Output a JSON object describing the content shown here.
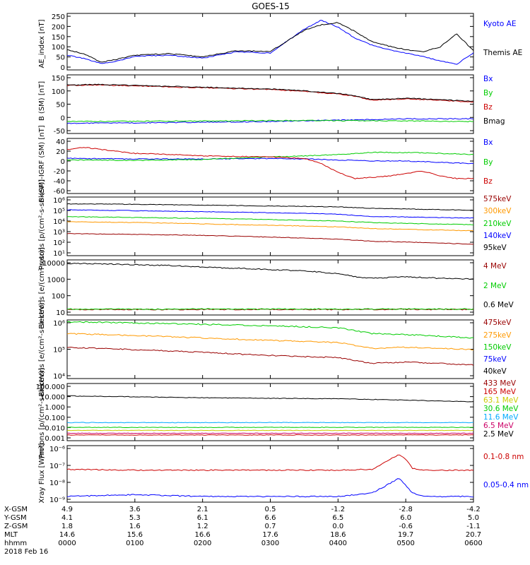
{
  "title": "GOES-15",
  "colors": {
    "black": "#000000",
    "blue": "#0000ff",
    "red": "#cc0000",
    "green": "#00cc00",
    "darkred": "#990000",
    "orange": "#ff9900",
    "cyan": "#00aaff",
    "magenta": "#cc0066",
    "yellow": "#cccc00"
  },
  "chart_data": [
    {
      "type": "line",
      "ylabel": "AE_index [nT]",
      "ylim": [
        0,
        250
      ],
      "yticks": [
        "250",
        "200",
        "150",
        "100",
        "50",
        "0"
      ],
      "series": [
        {
          "name": "Kyoto AE",
          "color": "blue",
          "x": [
            0,
            0.25,
            0.5,
            0.75,
            1,
            1.5,
            2,
            2.5,
            3,
            3.5,
            3.75,
            4,
            4.25,
            4.5,
            4.75,
            5,
            5.25,
            5.5,
            5.75,
            6
          ],
          "values": [
            65,
            50,
            28,
            40,
            60,
            65,
            52,
            80,
            75,
            180,
            220,
            190,
            140,
            110,
            90,
            75,
            60,
            40,
            25,
            75
          ]
        },
        {
          "name": "Themis AE",
          "color": "black",
          "x": [
            0,
            0.25,
            0.5,
            0.75,
            1,
            1.5,
            2,
            2.5,
            3,
            3.5,
            3.75,
            4,
            4.25,
            4.5,
            4.75,
            5,
            5.25,
            5.5,
            5.75,
            6
          ],
          "values": [
            90,
            70,
            35,
            48,
            65,
            72,
            58,
            85,
            82,
            175,
            200,
            210,
            170,
            125,
            105,
            90,
            80,
            100,
            160,
            85
          ]
        }
      ]
    },
    {
      "type": "line",
      "ylabel": "B (SM) [nT]",
      "ylim": [
        -60,
        160
      ],
      "yticks": [
        "150",
        "100",
        "50",
        "0",
        "-50"
      ],
      "series": [
        {
          "name": "Bx",
          "color": "blue",
          "x": [
            0,
            1,
            2,
            3,
            3.5,
            4,
            4.5,
            5,
            5.5,
            6
          ],
          "values": [
            -22,
            -20,
            -18,
            -15,
            -12,
            -10,
            -8,
            -5,
            -5,
            -5
          ]
        },
        {
          "name": "By",
          "color": "green",
          "x": [
            0,
            1,
            2,
            3,
            3.5,
            4,
            4.5,
            5,
            5.5,
            6
          ],
          "values": [
            -15,
            -14,
            -13,
            -12,
            -11,
            -12,
            -12,
            -13,
            -14,
            -15
          ]
        },
        {
          "name": "Bz",
          "color": "red",
          "x": [
            0,
            0.5,
            1,
            1.5,
            2,
            2.5,
            3,
            3.5,
            4,
            4.25,
            4.5,
            4.75,
            5,
            5.5,
            6
          ],
          "values": [
            120,
            122,
            118,
            115,
            112,
            108,
            105,
            98,
            88,
            80,
            65,
            68,
            70,
            65,
            58
          ]
        },
        {
          "name": "Bmag",
          "color": "black",
          "x": [
            0,
            0.5,
            1,
            1.5,
            2,
            2.5,
            3,
            3.5,
            4,
            4.25,
            4.5,
            4.75,
            5,
            5.5,
            6
          ],
          "values": [
            122,
            124,
            120,
            117,
            114,
            110,
            107,
            100,
            90,
            82,
            67,
            70,
            72,
            67,
            60
          ]
        }
      ]
    },
    {
      "type": "line",
      "ylabel": "B (SM)-IGRF (SM) [nT]",
      "ylim": [
        -70,
        40
      ],
      "yticks": [
        "40",
        "20",
        "0",
        "-20",
        "-40",
        "-60"
      ],
      "series": [
        {
          "name": "Bx",
          "color": "blue",
          "x": [
            0,
            1,
            2,
            3,
            3.5,
            4,
            4.5,
            5,
            5.5,
            6
          ],
          "values": [
            0,
            -1,
            -1,
            0,
            -1,
            -3,
            -5,
            -5,
            -8,
            -10
          ]
        },
        {
          "name": "By",
          "color": "green",
          "x": [
            0,
            1,
            2,
            3,
            3.5,
            4,
            4.5,
            5,
            5.5,
            6
          ],
          "values": [
            -3,
            -4,
            -2,
            3,
            5,
            8,
            12,
            12,
            10,
            8
          ]
        },
        {
          "name": "Bz",
          "color": "red",
          "x": [
            0,
            0.25,
            1,
            1.5,
            2,
            2.5,
            3,
            3.5,
            3.75,
            4,
            4.25,
            4.5,
            4.75,
            5,
            5.25,
            5.5,
            5.75,
            6
          ],
          "values": [
            18,
            22,
            10,
            8,
            5,
            4,
            3,
            0,
            -10,
            -28,
            -40,
            -38,
            -35,
            -30,
            -25,
            -35,
            -40,
            -40
          ]
        }
      ]
    },
    {
      "type": "line",
      "ylabel": "Protons [p/(cm²-s-sr-keV)]",
      "scale": "log",
      "ylim": [
        1,
        1000000
      ],
      "yticks": [
        "10⁶",
        "10⁵",
        "10⁴",
        "10³",
        "10²",
        "10¹"
      ],
      "series": [
        {
          "name": "575keV",
          "color": "darkred",
          "x": [
            0,
            1,
            2,
            3,
            4,
            4.5,
            5,
            6
          ],
          "values": [
            180,
            150,
            120,
            80,
            50,
            30,
            25,
            15
          ]
        },
        {
          "name": "300keV",
          "color": "orange",
          "x": [
            0,
            1,
            2,
            3,
            4,
            4.5,
            5,
            6
          ],
          "values": [
            3000,
            2500,
            1800,
            1300,
            900,
            600,
            500,
            350
          ]
        },
        {
          "name": "210keV",
          "color": "green",
          "x": [
            0,
            1,
            2,
            3,
            4,
            4.5,
            5,
            6
          ],
          "values": [
            10000,
            8000,
            6500,
            5000,
            3500,
            2500,
            2000,
            1500
          ]
        },
        {
          "name": "140keV",
          "color": "blue",
          "x": [
            0,
            1,
            2,
            3,
            4,
            4.5,
            5,
            6
          ],
          "values": [
            50000,
            40000,
            32000,
            25000,
            18000,
            10000,
            9000,
            7000
          ]
        },
        {
          "name": "95keV",
          "color": "black",
          "x": [
            0,
            1,
            2,
            3,
            4,
            4.5,
            5,
            6
          ],
          "values": [
            200000,
            180000,
            150000,
            120000,
            100000,
            70000,
            60000,
            45000
          ]
        }
      ]
    },
    {
      "type": "line",
      "ylabel": "Electrons [e/(cm²-s-sr)]",
      "scale": "log",
      "ylim": [
        10,
        10000
      ],
      "yticks": [
        "10000",
        "1000",
        "100",
        "10"
      ],
      "series": [
        {
          "name": "4 MeV",
          "color": "darkred",
          "x": [
            0,
            1,
            2,
            3,
            4,
            5,
            6
          ],
          "values": [
            20,
            20,
            20,
            20,
            20,
            20,
            20
          ]
        },
        {
          "name": "2 MeV",
          "color": "green",
          "x": [
            0,
            1,
            2,
            3,
            4,
            5,
            6
          ],
          "values": [
            21,
            21,
            21,
            21,
            21,
            21,
            21
          ]
        },
        {
          "name": "0.6 MeV",
          "color": "black",
          "x": [
            0,
            0.5,
            1,
            1.5,
            2,
            2.5,
            3,
            3.5,
            4,
            4.25,
            4.5,
            5,
            5.5,
            6
          ],
          "values": [
            6500,
            6000,
            5500,
            5000,
            4000,
            3500,
            3000,
            2500,
            1800,
            1200,
            1000,
            1200,
            1000,
            900
          ]
        }
      ]
    },
    {
      "type": "line",
      "ylabel": "Electrons [e/(cm²-s-sr-keV)]",
      "scale": "log",
      "ylim": [
        1000,
        1000000
      ],
      "yticks": [
        "10⁶",
        "10⁵",
        "10⁴"
      ],
      "series": [
        {
          "name": "475keV",
          "color": "darkred",
          "x": [
            0,
            1,
            2,
            3,
            4,
            4.5,
            5,
            6
          ],
          "values": [
            40000,
            30000,
            22000,
            15000,
            12000,
            6000,
            7000,
            5000
          ]
        },
        {
          "name": "275keV",
          "color": "orange",
          "x": [
            0,
            1,
            2,
            3,
            4,
            4.5,
            5,
            6
          ],
          "values": [
            200000,
            160000,
            120000,
            90000,
            70000,
            35000,
            40000,
            30000
          ]
        },
        {
          "name": "150keV",
          "color": "green",
          "x": [
            0,
            1,
            2,
            3,
            4,
            4.5,
            5,
            6
          ],
          "values": [
            800000,
            700000,
            600000,
            500000,
            400000,
            200000,
            180000,
            120000
          ]
        },
        {
          "name": "75keV",
          "color": "blue",
          "x": [],
          "values": []
        },
        {
          "name": "40keV",
          "color": "black",
          "x": [],
          "values": []
        }
      ]
    },
    {
      "type": "line",
      "ylabel": "Protons [p/(cm²-s-sr-keV)]",
      "scale": "log",
      "ylim": [
        0.001,
        1000
      ],
      "yticks": [
        "100.000",
        "10.000",
        "1.000",
        "0.100",
        "0.010",
        "0.001"
      ],
      "series": [
        {
          "name": "433 MeV",
          "color": "darkred",
          "x": [],
          "values": []
        },
        {
          "name": "165 MeV",
          "color": "red",
          "x": [
            0,
            6
          ],
          "values": [
            0.004,
            0.004
          ]
        },
        {
          "name": "63.1 MeV",
          "color": "yellow",
          "x": [
            0,
            6
          ],
          "values": [
            0.012,
            0.012
          ]
        },
        {
          "name": "30.6 MeV",
          "color": "green",
          "x": [
            0,
            6
          ],
          "values": [
            0.025,
            0.025
          ]
        },
        {
          "name": "11.6 MeV",
          "color": "cyan",
          "x": [
            0,
            6
          ],
          "values": [
            0.08,
            0.08
          ]
        },
        {
          "name": "6.5 MeV",
          "color": "magenta",
          "x": [
            0,
            6
          ],
          "values": [
            0.006,
            0.006
          ]
        },
        {
          "name": "2.5 MeV",
          "color": "black",
          "x": [
            0,
            1,
            2,
            3,
            4,
            5,
            6
          ],
          "values": [
            50,
            40,
            32,
            28,
            25,
            18,
            12
          ]
        }
      ]
    },
    {
      "type": "line",
      "ylabel": "Xray Flux [W/m²]",
      "scale": "log",
      "ylim": [
        1e-09,
        1e-06
      ],
      "yticks": [
        "10⁻⁶",
        "10⁻⁷",
        "10⁻⁸",
        "10⁻⁹"
      ],
      "series": [
        {
          "name": "0.1-0.8 nm",
          "color": "red",
          "x": [
            0,
            1,
            2,
            3,
            4,
            4.5,
            4.9,
            5.0,
            5.1,
            5.3,
            5.5,
            6
          ],
          "values": [
            5.5e-08,
            5e-08,
            5e-08,
            5e-08,
            5e-08,
            5.5e-08,
            3.5e-07,
            2e-07,
            6e-08,
            5e-08,
            5e-08,
            5e-08
          ]
        },
        {
          "name": "0.05-0.4 nm",
          "color": "blue",
          "x": [
            0,
            1,
            2,
            3,
            4,
            4.5,
            4.9,
            5.0,
            5.1,
            5.3,
            5.5,
            6
          ],
          "values": [
            2e-09,
            2.5e-09,
            2e-09,
            2e-09,
            2e-09,
            3e-09,
            1.8e-08,
            8e-09,
            3e-09,
            2e-09,
            2e-09,
            2e-09
          ]
        }
      ]
    }
  ],
  "xaxis": {
    "rows": [
      {
        "label": "X-GSM",
        "values": [
          "4.9",
          "3.6",
          "2.1",
          "0.5",
          "-1.2",
          "-2.8",
          "-4.2"
        ]
      },
      {
        "label": "Y-GSM",
        "values": [
          "4.1",
          "5.3",
          "6.1",
          "6.6",
          "6.5",
          "6.0",
          "5.0"
        ]
      },
      {
        "label": "Z-GSM",
        "values": [
          "1.8",
          "1.6",
          "1.2",
          "0.7",
          "0.0",
          "-0.6",
          "-1.1"
        ]
      },
      {
        "label": "MLT",
        "values": [
          "14.6",
          "15.6",
          "16.6",
          "17.6",
          "18.6",
          "19.7",
          "20.7"
        ]
      },
      {
        "label": "hhmm",
        "values": [
          "0000",
          "0100",
          "0200",
          "0300",
          "0400",
          "0500",
          "0600"
        ]
      }
    ],
    "date": "2018 Feb 16"
  }
}
